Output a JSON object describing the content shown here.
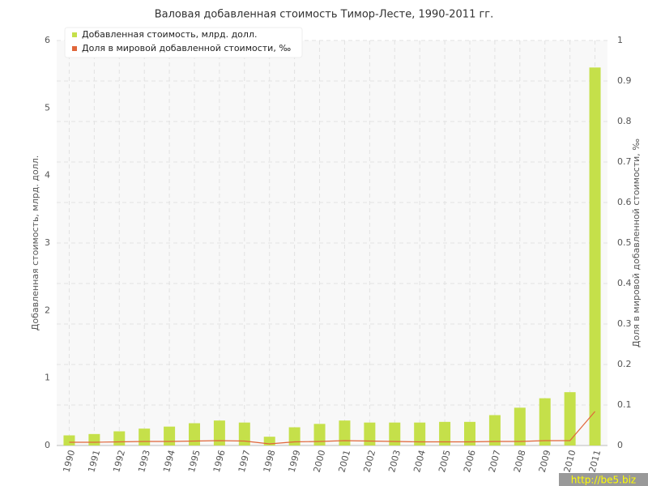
{
  "chart_data": {
    "type": "bar",
    "title": "Валовая добавленная стоимость Тимор-Лесте, 1990-2011 гг.",
    "ylabel": "Добавленная стоимость, млрд. долл.",
    "y2label": "Доля в мировой добавленной стоимости, ‰",
    "categories": [
      "1990",
      "1991",
      "1992",
      "1993",
      "1994",
      "1995",
      "1996",
      "1997",
      "1998",
      "1999",
      "2000",
      "2001",
      "2002",
      "2003",
      "2004",
      "2005",
      "2006",
      "2007",
      "2008",
      "2009",
      "2010",
      "2011"
    ],
    "series": [
      {
        "name": "Добавленная стоимость, млрд. долл.",
        "color": "#c5e04a",
        "type": "bar",
        "values": [
          0.15,
          0.17,
          0.21,
          0.25,
          0.28,
          0.33,
          0.37,
          0.34,
          0.13,
          0.27,
          0.32,
          0.37,
          0.34,
          0.34,
          0.34,
          0.35,
          0.35,
          0.45,
          0.56,
          0.7,
          0.79,
          5.6
        ]
      },
      {
        "name": "Доля в мировой добавленной стоимости, ‰",
        "color": "#e0663a",
        "type": "line",
        "axis": "y2",
        "values": [
          0.008,
          0.008,
          0.009,
          0.01,
          0.01,
          0.011,
          0.012,
          0.011,
          0.004,
          0.009,
          0.01,
          0.012,
          0.011,
          0.01,
          0.009,
          0.009,
          0.009,
          0.01,
          0.01,
          0.012,
          0.012,
          0.084
        ]
      }
    ],
    "ylim": [
      0,
      6
    ],
    "yticks": [
      0,
      1,
      2,
      3,
      4,
      5,
      6
    ],
    "y2lim": [
      0,
      1
    ],
    "y2ticks": [
      0,
      0.1,
      0.2,
      0.3,
      0.4,
      0.5,
      0.6,
      0.7,
      0.8,
      0.9,
      1
    ],
    "grid": true,
    "legend": "top-left",
    "watermark": "http://be5.biz"
  }
}
